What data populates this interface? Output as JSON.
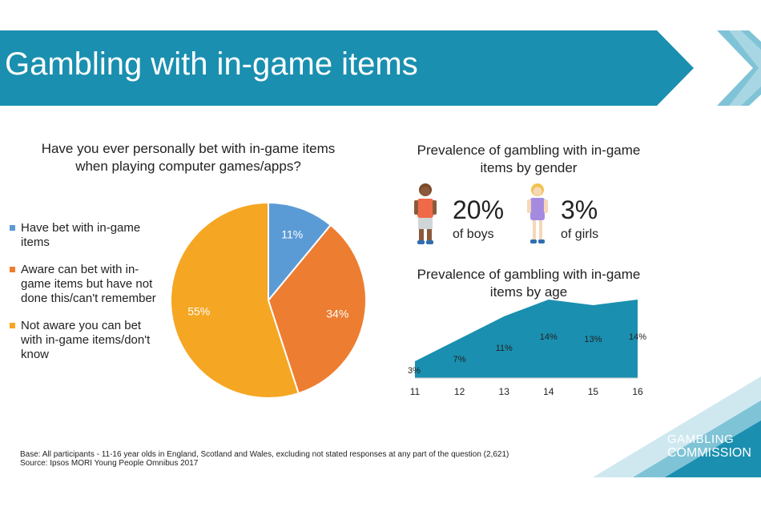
{
  "header": {
    "title": "Gambling with in-game items"
  },
  "colors": {
    "banner": "#1a8fb0",
    "banner_light": "#7fc3d6",
    "have_bet": "#5b9bd5",
    "aware": "#ed7d31",
    "not_aware": "#f5a623",
    "age_area": "#1a8fb0"
  },
  "chart_data": [
    {
      "type": "pie",
      "title": "Have you ever personally bet with in-game items when playing computer games/apps?",
      "legend_position": "left",
      "slices": [
        {
          "label": "Have bet with in-game items",
          "value": 11,
          "display": "11%",
          "color": "#5b9bd5"
        },
        {
          "label": "Aware can bet with in-game items but have not done this/can't remember",
          "value": 34,
          "display": "34%",
          "color": "#ed7d31"
        },
        {
          "label": "Not aware you can bet with in-game items/don't know",
          "value": 55,
          "display": "55%",
          "color": "#f5a623"
        }
      ]
    },
    {
      "type": "area",
      "title": "Prevalence of gambling with in-game items by age",
      "x": [
        11,
        12,
        13,
        14,
        15,
        16
      ],
      "categories": [
        "11",
        "12",
        "13",
        "14",
        "15",
        "16"
      ],
      "values": [
        3,
        7,
        11,
        14,
        13,
        14
      ],
      "labels": [
        "3%",
        "7%",
        "11%",
        "14%",
        "13%",
        "14%"
      ],
      "ylim": [
        0,
        14
      ],
      "grid": false
    }
  ],
  "gender": {
    "title": "Prevalence of gambling with in-game items by gender",
    "boys": {
      "pct": "20%",
      "label": "of boys"
    },
    "girls": {
      "pct": "3%",
      "label": "of girls"
    }
  },
  "footer": {
    "base": "Base: All participants - 11-16 year olds in England, Scotland and Wales, excluding not stated responses at any part of the question (2,621)",
    "source": "Source: Ipsos MORI Young People Omnibus 2017"
  },
  "logo": {
    "line1": "GAMBLING",
    "line2": "COMMISSION"
  }
}
